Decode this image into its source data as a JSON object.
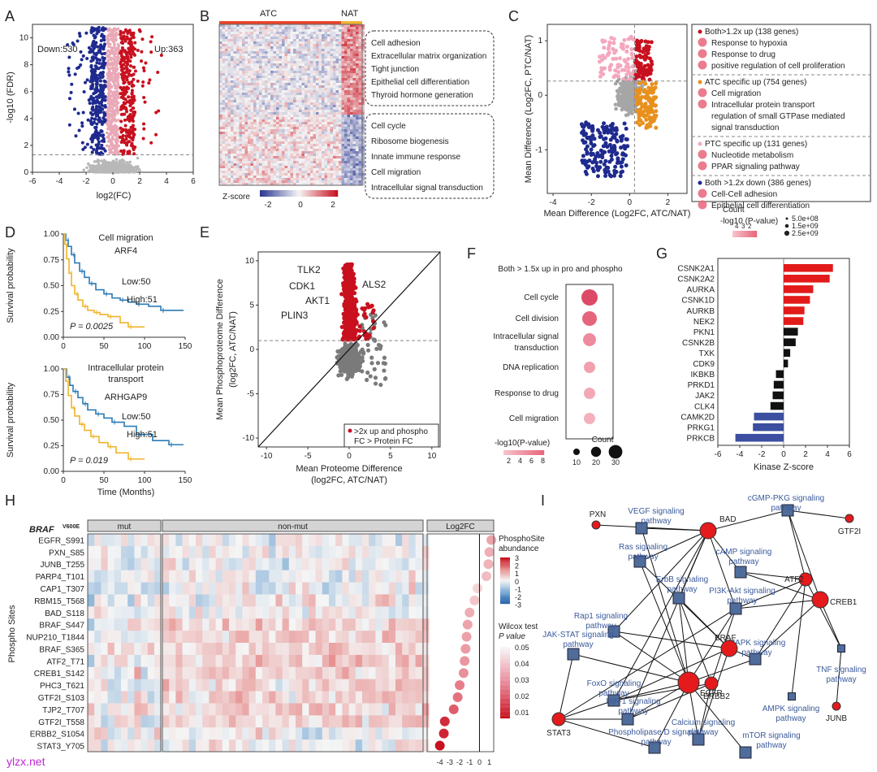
{
  "figure": {
    "panel_letters": [
      "A",
      "B",
      "C",
      "D",
      "E",
      "F",
      "G",
      "H",
      "I"
    ],
    "watermark": "ylzx.net"
  },
  "chart_data": [
    {
      "panel": "A",
      "type": "scatter",
      "title": "",
      "xlabel": "log2(FC)",
      "ylabel": "-log10 (FDR)",
      "xlim": [
        -6,
        6
      ],
      "ylim": [
        0,
        11
      ],
      "xticks": [
        -6,
        -4,
        -2,
        0,
        2,
        4,
        6
      ],
      "yticks": [
        0,
        2,
        4,
        6,
        8,
        10
      ],
      "threshold_y": 1.3,
      "annotations": {
        "down": "Down:530",
        "up": "Up:363"
      },
      "series": [
        {
          "name": "Down",
          "color": "#1f2a8f"
        },
        {
          "name": "Up",
          "color": "#c8101e"
        },
        {
          "name": "NS",
          "color": "#b8b8b8"
        },
        {
          "name": "Mid",
          "color": "#e9a9b7"
        }
      ]
    },
    {
      "panel": "B",
      "type": "heatmap",
      "column_groups": [
        {
          "name": "ATC",
          "color": "#e8442a"
        },
        {
          "name": "NAT",
          "color": "#f1b532"
        }
      ],
      "colorbar": {
        "label": "Z-score",
        "ticks": [
          "-2",
          "0",
          "2"
        ],
        "colors": [
          "#2a3590",
          "#f5f5f5",
          "#c8101e"
        ]
      },
      "terms_top": [
        "Cell adhesion",
        "Extracellular matrix organization",
        "Tight junction",
        "Epithelial cell differentiation",
        "Thyroid hormone generation"
      ],
      "terms_bottom": [
        "Cell cycle",
        "Ribosome biogenesis",
        "Innate immune response",
        "Cell migration",
        "Intracellular signal transduction"
      ]
    },
    {
      "panel": "C",
      "type": "scatter",
      "xlabel": "Mean Difference (Log2FC, ATC/NAT)",
      "ylabel": "Mean Difference (Log2FC, PTC/NAT)",
      "xlim": [
        -4.3,
        3.0
      ],
      "ylim": [
        -1.8,
        1.3
      ],
      "xticks": [
        -4,
        -2,
        0,
        2
      ],
      "yticks": [
        -1,
        0,
        1
      ],
      "groups": [
        {
          "header": "Both>1.2x up (138 genes)",
          "color": "#c8101e",
          "terms": [
            "Response to hypoxia",
            "Response to drug",
            "positive regulation of cell proliferation"
          ]
        },
        {
          "header": "ATC specific up (754 genes)",
          "color": "#e8901e",
          "terms": [
            "Cell migration",
            "Intracellular protein transport",
            "regulation of small GTPase mediated",
            "signal transduction"
          ]
        },
        {
          "header": "PTC specific up (131 genes)",
          "color": "#f4a7bd",
          "terms": [
            "Nucleotide metabolism",
            "PPAR signaling pathway"
          ]
        },
        {
          "header": "Both >1.2x down (386 genes)",
          "color": "#1f2a8f",
          "terms": [
            "Cell-Cell adhesion",
            "Epithelial cell differentiation"
          ]
        }
      ],
      "legend_pvalue_label": "-log10 (P-value)",
      "legend_pvalue_ticks": [
        "4",
        "3",
        "2"
      ],
      "legend_count_label": "Count",
      "legend_count_values": [
        "5.0e+08",
        "1.5e+09",
        "2.5e+09"
      ]
    },
    {
      "panel": "D1",
      "type": "line",
      "title": "Cell migration",
      "subtitle": "ARF4",
      "xlabel": "",
      "ylabel": "Survival probability",
      "xlim": [
        0,
        150
      ],
      "ylim": [
        0,
        1
      ],
      "xticks": [
        0,
        50,
        100,
        150
      ],
      "yticks": [
        "0.00",
        "0.25",
        "0.50",
        "0.75",
        "1.00"
      ],
      "pvalue_label": "P = 0.0025",
      "series": [
        {
          "name": "Low:50",
          "color": "#2c7bb6",
          "x": [
            0,
            3,
            6,
            10,
            14,
            20,
            26,
            32,
            40,
            50,
            60,
            70,
            80,
            90,
            105,
            120,
            148
          ],
          "y": [
            1,
            0.94,
            0.88,
            0.8,
            0.72,
            0.64,
            0.58,
            0.52,
            0.46,
            0.42,
            0.38,
            0.36,
            0.34,
            0.32,
            0.3,
            0.26,
            0.26
          ]
        },
        {
          "name": "High:51",
          "color": "#f0b429",
          "x": [
            0,
            2,
            4,
            7,
            10,
            14,
            18,
            24,
            30,
            38,
            45,
            55,
            70,
            80,
            100
          ],
          "y": [
            1,
            0.9,
            0.76,
            0.62,
            0.5,
            0.42,
            0.36,
            0.3,
            0.26,
            0.24,
            0.22,
            0.2,
            0.14,
            0.1,
            0.1
          ]
        }
      ]
    },
    {
      "panel": "D2",
      "type": "line",
      "title": "Intracellular protein",
      "title2": "transport",
      "subtitle": "ARHGAP9",
      "xlabel": "Time (Months)",
      "ylabel": "Survival probability",
      "xlim": [
        0,
        150
      ],
      "ylim": [
        0,
        1
      ],
      "xticks": [
        0,
        50,
        100,
        150
      ],
      "yticks": [
        "0.00",
        "0.25",
        "0.50",
        "0.75",
        "1.00"
      ],
      "pvalue_label": "P = 0.019",
      "series": [
        {
          "name": "Low:50",
          "color": "#2c7bb6",
          "x": [
            0,
            4,
            8,
            12,
            18,
            24,
            30,
            40,
            50,
            60,
            75,
            90,
            110,
            130,
            148
          ],
          "y": [
            1,
            0.92,
            0.84,
            0.78,
            0.72,
            0.66,
            0.6,
            0.56,
            0.52,
            0.48,
            0.44,
            0.36,
            0.3,
            0.26,
            0.26
          ]
        },
        {
          "name": "High:51",
          "color": "#f0b429",
          "x": [
            0,
            3,
            6,
            10,
            14,
            20,
            26,
            34,
            44,
            55,
            65,
            80,
            100
          ],
          "y": [
            1,
            0.88,
            0.74,
            0.62,
            0.54,
            0.46,
            0.4,
            0.34,
            0.28,
            0.24,
            0.18,
            0.12,
            0.12
          ]
        }
      ]
    },
    {
      "panel": "E",
      "type": "scatter",
      "xlabel": "Mean Proteome Difference",
      "xlabel2": "(log2FC, ATC/NAT)",
      "ylabel": "Mean Phosphoproteome Difference",
      "ylabel2": "(log2FC, ATC/NAT)",
      "xlim": [
        -11,
        11
      ],
      "ylim": [
        -11,
        11
      ],
      "xticks": [
        -10,
        -5,
        0,
        5,
        10
      ],
      "yticks": [
        -10,
        -5,
        0,
        5,
        10
      ],
      "threshold_y": 1,
      "labels": [
        "TLK2",
        "CDK1",
        "AKT1",
        "PLIN3",
        "ALS2"
      ],
      "legend": [
        ">2x up and phospho",
        "FC > Protein FC"
      ]
    },
    {
      "panel": "F",
      "type": "scatter",
      "title": "Both > 1.5x up in pro and phospho",
      "terms": [
        "Cell cycle",
        "Cell division",
        "Intracellular signal",
        "transduction",
        "DNA replication",
        "Response to drug",
        "Cell migration"
      ],
      "legend_pvalue_label": "-log10(P-value)",
      "legend_pvalue_ticks": [
        "2",
        "4",
        "6",
        "8"
      ],
      "legend_count_label": "Count",
      "legend_count_values": [
        "10",
        "20",
        "30"
      ]
    },
    {
      "panel": "G",
      "type": "bar",
      "xlabel": "Kinase Z-score",
      "xlim": [
        -6,
        6
      ],
      "xticks": [
        -6,
        -4,
        -2,
        0,
        2,
        4,
        6
      ],
      "categories": [
        "CSNK2A1",
        "CSNK2A2",
        "AURKA",
        "CSNK1D",
        "AURKB",
        "NEK2",
        "PKN1",
        "CSNK2B",
        "TXK",
        "CDK9",
        "IKBKB",
        "PRKD1",
        "JAK2",
        "CLK4",
        "CAMK2D",
        "PRKG1",
        "PRKCB"
      ],
      "values": [
        4.5,
        4.2,
        2.7,
        2.4,
        1.9,
        1.8,
        1.3,
        1.1,
        0.6,
        0.4,
        -0.7,
        -0.9,
        -1.0,
        -1.2,
        -2.7,
        -2.8,
        -4.4
      ]
    },
    {
      "panel": "H",
      "type": "heatmap",
      "title_gene": "BRAF",
      "title_sup": "V600E",
      "column_groups": [
        "mut",
        "non-mut",
        "Log2FC"
      ],
      "ylabel": "Phospho Sites",
      "rows": [
        "EGFR_S991",
        "PXN_S85",
        "JUNB_T255",
        "PARP4_T101",
        "CAP1_T307",
        "RBM15_T568",
        "BAD_S118",
        "BRAF_S447",
        "NUP210_T1844",
        "BRAF_S365",
        "ATF2_T71",
        "CREB1_S142",
        "PHC3_T621",
        "GTF2I_S103",
        "TJP2_T707",
        "GTF2I_T558",
        "ERBB2_S1054",
        "STAT3_Y705"
      ],
      "log2fc": [
        1.2,
        1.0,
        0.9,
        0.7,
        -0.2,
        -0.5,
        -1.0,
        -1.2,
        -1.3,
        -1.4,
        -1.5,
        -1.6,
        -2.0,
        -2.2,
        -2.6,
        -3.5,
        -3.6,
        -4.0
      ],
      "xticks": [
        "-4",
        "-3",
        "-2",
        "-1",
        "0",
        "1"
      ],
      "legend_abundance_label": "PhosphoSite",
      "legend_abundance_label2": "abundance",
      "legend_abundance_ticks": [
        "3",
        "2",
        "1",
        "0",
        "-1",
        "-2",
        "-3"
      ],
      "legend_p_label": "Wilcox test",
      "legend_p_label2": "P value",
      "legend_p_ticks": [
        "0.05",
        "0.04",
        "0.03",
        "0.02",
        "0.01"
      ]
    },
    {
      "panel": "I",
      "type": "network",
      "gene_nodes": [
        "PXN",
        "BAD",
        "GTF2I",
        "ATF2",
        "CREB1",
        "EGFR",
        "BRAF",
        "ERBB2",
        "STAT3",
        "JUNB"
      ],
      "pathway_nodes": [
        "VEGF signaling pathway",
        "cGMP-PKG signaling pathway",
        "Ras signaling pathway",
        "cAMP signaling pathway",
        "ErbB signaling pathway",
        "PI3K-Akt signaling pathway",
        "Rap1 signaling pathway",
        "JAK-STAT signaling pathway",
        "MAPK signaling pathway",
        "FoxO signaling pathway",
        "TNF signaling pathway",
        "HIF-1 signaling pathway",
        "AMPK signaling pathway",
        "Phospholipase D signaling pathway",
        "Calcium signaling pathway",
        "mTOR signaling pathway"
      ]
    }
  ]
}
